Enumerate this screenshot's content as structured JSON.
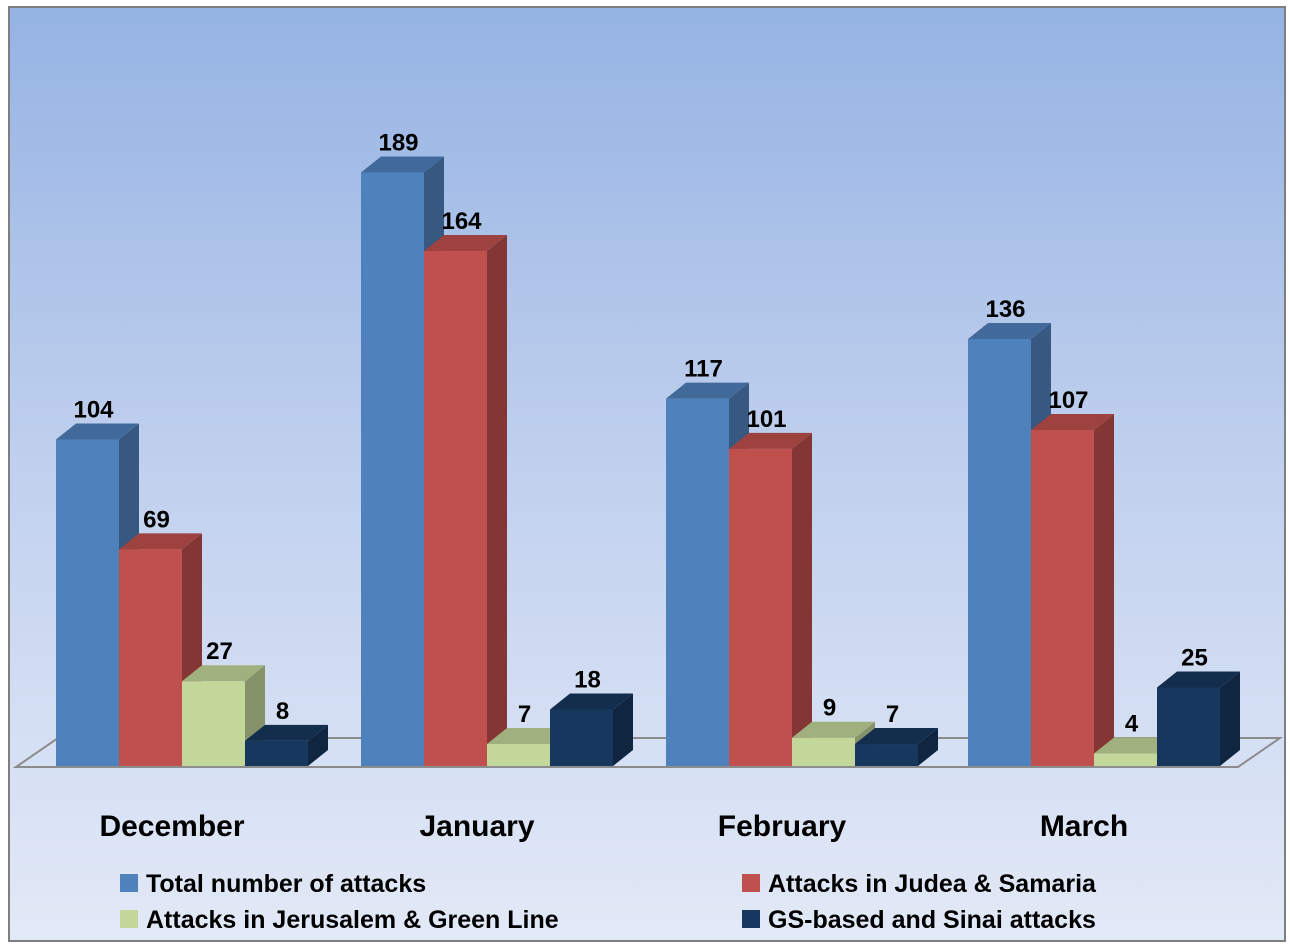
{
  "chart_data": {
    "type": "bar",
    "categories": [
      "December",
      "January",
      "February",
      "March"
    ],
    "series": [
      {
        "name": "Total number of attacks",
        "values": [
          104,
          189,
          117,
          136
        ],
        "color": "#4f81bd"
      },
      {
        "name": "Attacks in Judea & Samaria",
        "values": [
          69,
          164,
          101,
          107
        ],
        "color": "#c0504d"
      },
      {
        "name": "Attacks in Jerusalem & Green Line",
        "values": [
          27,
          7,
          9,
          4
        ],
        "color": "#c4d79b"
      },
      {
        "name": "GS-based and Sinai attacks",
        "values": [
          8,
          18,
          7,
          25
        ],
        "color": "#17375e"
      }
    ],
    "data_labels": true,
    "gridlines": false,
    "legend_position": "bottom",
    "style": "3d-clustered-column",
    "background": "gradient blue to pale blue"
  }
}
